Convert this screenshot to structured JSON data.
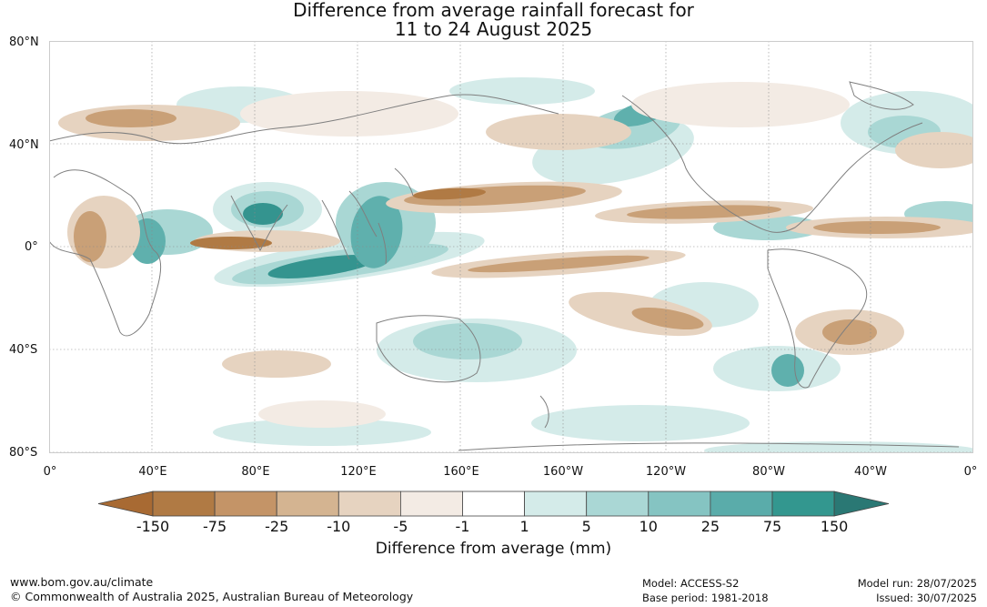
{
  "title": {
    "line1": "Difference from average rainfall forecast for",
    "line2": "11 to 24 August 2025"
  },
  "map": {
    "lat_labels": [
      "80°N",
      "40°N",
      "0°",
      "40°S",
      "80°S"
    ],
    "lon_labels": [
      "0°",
      "40°E",
      "80°E",
      "120°E",
      "160°E",
      "160°W",
      "120°W",
      "80°W",
      "40°W",
      "0°"
    ],
    "colors": {
      "dry_strong": "#b07a44",
      "dry_mid": "#c9a077",
      "dry_light": "#e6d3c0",
      "dry_faint": "#f3ebe4",
      "wet_faint": "#d4ebe9",
      "wet_light": "#a9d7d4",
      "wet_mid": "#5fb0ad",
      "wet_strong": "#34948f",
      "coast": "#7f7f7f"
    }
  },
  "colorbar": {
    "labels": [
      "-150",
      "-75",
      "-25",
      "-10",
      "-5",
      "-1",
      "1",
      "5",
      "10",
      "25",
      "75",
      "150"
    ],
    "colors": [
      "#a86a33",
      "#b07a44",
      "#c49467",
      "#d4b491",
      "#e6d3c0",
      "#f3ebe4",
      "#ffffff",
      "#d4ebe9",
      "#aad7d5",
      "#85c4c2",
      "#5aacaa",
      "#33978f",
      "#2a7874"
    ],
    "unit_label": "Difference from average (mm)"
  },
  "footer": {
    "website": "www.bom.gov.au/climate",
    "copyright": "© Commonwealth of Australia 2025, Australian Bureau of Meteorology",
    "model": "Model: ACCESS-S2",
    "base_period": "Base period: 1981-2018",
    "model_run": "Model run: 28/07/2025",
    "issued": "Issued: 30/07/2025"
  }
}
